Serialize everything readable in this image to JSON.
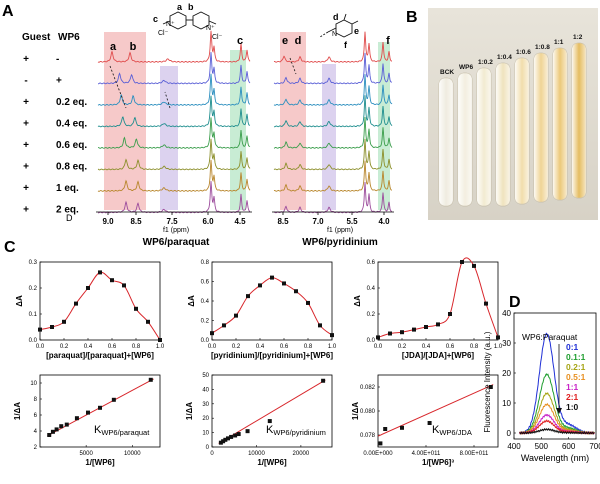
{
  "panel_labels": {
    "a": "A",
    "b": "B",
    "c": "C",
    "d": "D"
  },
  "panelA": {
    "header_guest": "Guest",
    "header_wp6": "WP6",
    "guest_col": [
      "+",
      "-",
      "+",
      "+",
      "+",
      "+",
      "+",
      "+"
    ],
    "wp6_col": [
      "-",
      "+",
      "0.2 eq.",
      "0.4 eq.",
      "0.6 eq.",
      "0.8 eq.",
      "1 eq.",
      "2 eq."
    ],
    "row_D": "D",
    "left": {
      "peak_labels": [
        "a",
        "b",
        "c"
      ],
      "struct_labels": {
        "a": "a",
        "b": "b",
        "c": "c",
        "cl_left": "Cl⁻",
        "cl_right": "Cl⁻",
        "n_left": "N⁺",
        "n_right": "N⁺"
      },
      "ticks": [
        "9.0",
        "8.5",
        "7.5",
        "6.0",
        "4.5"
      ],
      "axis_label": "f1 (ppm)",
      "title": "WP6/paraquat"
    },
    "right": {
      "peak_labels": [
        "e",
        "d",
        "f"
      ],
      "struct_labels": {
        "d": "d",
        "e": "e",
        "f": "f",
        "n": "N"
      },
      "ticks": [
        "8.5",
        "7.0",
        "5.5",
        "4.0"
      ],
      "axis_label": "f1 (ppm)",
      "title": "WP6/pyridinium"
    }
  },
  "panelB": {
    "tube_labels": [
      "BCK",
      "WP6",
      "1:0.2",
      "1:0.4",
      "1:0.6",
      "1:0.8",
      "1:1",
      "1:2"
    ],
    "tube_colors": [
      "#ece7d8",
      "#f0ead8",
      "#efe6c6",
      "#ecdcae",
      "#eed597",
      "#ecc97a",
      "#e7bb58",
      "#dfac3a"
    ]
  },
  "panelC": {
    "job_plots": [
      {
        "name": "paraquat-job",
        "xlabel": "[paraquat]/[paraquat]+[WP6]",
        "ylabel": "ΔA",
        "xlim": [
          0,
          1
        ],
        "ylim": [
          0,
          0.3
        ],
        "xticks": [
          "0.0",
          "0.2",
          "0.4",
          "0.6",
          "0.8",
          "1.0"
        ],
        "yticks": [
          "0.0",
          "0.1",
          "0.2",
          "0.3"
        ],
        "x": [
          0.0,
          0.1,
          0.2,
          0.3,
          0.4,
          0.5,
          0.6,
          0.7,
          0.8,
          0.9,
          1.0
        ],
        "y": [
          0.04,
          0.05,
          0.07,
          0.14,
          0.2,
          0.26,
          0.23,
          0.21,
          0.12,
          0.07,
          0.0
        ]
      },
      {
        "name": "pyridinium-job",
        "xlabel": "[pyridinium]/[pyridinium]+[WP6]",
        "ylabel": "ΔA",
        "xlim": [
          0,
          1
        ],
        "ylim": [
          0,
          0.8
        ],
        "xticks": [
          "0.0",
          "0.2",
          "0.4",
          "0.6",
          "0.8",
          "1.0"
        ],
        "yticks": [
          "0.0",
          "0.2",
          "0.4",
          "0.6",
          "0.8"
        ],
        "x": [
          0.0,
          0.1,
          0.2,
          0.3,
          0.4,
          0.5,
          0.6,
          0.7,
          0.8,
          0.9,
          1.0
        ],
        "y": [
          0.07,
          0.15,
          0.25,
          0.45,
          0.56,
          0.64,
          0.58,
          0.5,
          0.38,
          0.15,
          0.05
        ]
      },
      {
        "name": "jda-job",
        "xlabel": "[JDA]/[JDA]+[WP6]",
        "ylabel": "ΔA",
        "xlim": [
          0,
          1
        ],
        "ylim": [
          0,
          0.6
        ],
        "xticks": [
          "0.0",
          "0.2",
          "0.4",
          "0.6",
          "0.8",
          "1.0"
        ],
        "yticks": [
          "0.0",
          "0.2",
          "0.4",
          "0.6"
        ],
        "x": [
          0.0,
          0.1,
          0.2,
          0.3,
          0.4,
          0.5,
          0.6,
          0.7,
          0.8,
          0.9,
          1.0
        ],
        "y": [
          0.02,
          0.05,
          0.06,
          0.08,
          0.1,
          0.12,
          0.2,
          0.6,
          0.57,
          0.28,
          0.02
        ]
      }
    ],
    "binding_plots": [
      {
        "name": "paraquat-binding",
        "xlabel": "1/[WP6]",
        "ylabel": "1/ΔA",
        "k_main": "K",
        "k_sub": "WP6/paraquat",
        "xlim": [
          0,
          13000
        ],
        "ylim": [
          2,
          11
        ],
        "xticks": [
          "5000",
          "10000"
        ],
        "xtick_vals": [
          5000,
          10000
        ],
        "yticks": [
          "2",
          "4",
          "6",
          "8",
          "10"
        ],
        "ytick_vals": [
          2,
          4,
          6,
          8,
          10
        ],
        "x": [
          1000,
          1400,
          1800,
          2300,
          2900,
          4000,
          5200,
          6500,
          8000,
          12000
        ],
        "y": [
          3.5,
          3.9,
          4.2,
          4.6,
          4.8,
          5.6,
          6.3,
          6.9,
          7.9,
          10.4
        ],
        "fit": [
          [
            800,
            3.4
          ],
          [
            12300,
            10.5
          ]
        ]
      },
      {
        "name": "pyridinium-binding",
        "xlabel": "1/[WP6]",
        "ylabel": "1/ΔA",
        "k_main": "K",
        "k_sub": "WP6/pyridinium",
        "xlim": [
          0,
          27000
        ],
        "ylim": [
          0,
          50
        ],
        "xticks": [
          "0",
          "10000",
          "20000"
        ],
        "xtick_vals": [
          0,
          10000,
          20000
        ],
        "yticks": [
          "0",
          "10",
          "20",
          "30",
          "40",
          "50"
        ],
        "ytick_vals": [
          0,
          10,
          20,
          30,
          40,
          50
        ],
        "x": [
          2000,
          2500,
          3000,
          3600,
          4300,
          5200,
          6000,
          8000,
          13000,
          25000
        ],
        "y": [
          3,
          4,
          5,
          6,
          7,
          8,
          9,
          11,
          18,
          46
        ],
        "fit": [
          [
            1500,
            2.5
          ],
          [
            25500,
            46.5
          ]
        ]
      },
      {
        "name": "jda-binding",
        "xlabel": "1/[WP6]³",
        "ylabel": "1/ΔA",
        "k_main": "K",
        "k_sub": "WP6/JDA",
        "xlim": [
          0,
          1000000000000.0
        ],
        "ylim": [
          0.077,
          0.083
        ],
        "xticks": [
          "0.00E+000",
          "4.00E+011",
          "8.00E+011"
        ],
        "xtick_vals": [
          0,
          400000000000.0,
          800000000000.0
        ],
        "yticks": [
          "0.078",
          "0.080",
          "0.082"
        ],
        "ytick_vals": [
          0.078,
          0.08,
          0.082
        ],
        "x": [
          20000000000.0,
          60000000000.0,
          200000000000.0,
          430000000000.0,
          940000000000.0
        ],
        "y": [
          0.0773,
          0.0785,
          0.0786,
          0.079,
          0.082
        ],
        "fit": [
          [
            0,
            0.0779
          ],
          [
            960000000000.0,
            0.0822
          ]
        ]
      }
    ]
  },
  "panelD": {
    "chart_data": {
      "type": "line",
      "xlabel": "Wavelength (nm)",
      "ylabel": "Fluorescence Intensity (a.u.)",
      "xlim": [
        400,
        700
      ],
      "ylim": [
        -2,
        40
      ],
      "xticks": [
        "400",
        "500",
        "600",
        "700"
      ],
      "xtick_vals": [
        400,
        500,
        600,
        700
      ],
      "yticks": [
        "0",
        "10",
        "20",
        "30",
        "40"
      ],
      "ytick_vals": [
        0,
        10,
        20,
        30,
        40
      ],
      "legend_title": "WP6:Paraquat",
      "peak_x": 520,
      "series": [
        {
          "name": "0:1",
          "peak": 33,
          "color": "#1f2fd6"
        },
        {
          "name": "0.1:1",
          "peak": 19.5,
          "color": "#1f9e2f"
        },
        {
          "name": "0.2:1",
          "peak": 13.2,
          "color": "#a6a414"
        },
        {
          "name": "0.5:1",
          "peak": 9.5,
          "color": "#e89021"
        },
        {
          "name": "1:1",
          "peak": 6.0,
          "color": "#c823c8"
        },
        {
          "name": "2:1",
          "peak": 4.0,
          "color": "#e02020"
        },
        {
          "name": "1:0",
          "peak": 1.2,
          "color": "#111111"
        }
      ]
    }
  }
}
